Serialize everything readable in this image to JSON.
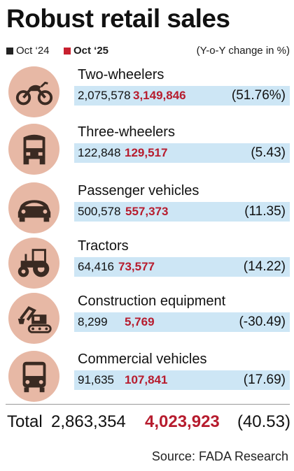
{
  "title": "Robust retail sales",
  "legend": {
    "old": {
      "label": "Oct ‘24",
      "color": "#222222"
    },
    "new": {
      "label": "Oct ‘25",
      "color": "#c8202f"
    },
    "note": "(Y-o-Y change in %)"
  },
  "colors": {
    "bar": "#cde6f5",
    "icon_bg": "#e7b8a5",
    "icon": "#3a2a22",
    "new_value": "#b71c2e"
  },
  "chart_data": {
    "type": "table",
    "title": "Robust retail sales",
    "columns": [
      "Oct ‘24",
      "Oct ‘25",
      "Y-o-Y change in %"
    ],
    "rows": [
      {
        "icon": "motorcycle-icon",
        "name": "Two-wheelers",
        "old": "2,075,578",
        "new": "3,149,846",
        "change": "(51.76%)"
      },
      {
        "icon": "auto-rickshaw-icon",
        "name": "Three-wheelers",
        "old": "122,848",
        "new": "129,517",
        "change": "(5.43)"
      },
      {
        "icon": "car-icon",
        "name": "Passenger vehicles",
        "old": "500,578",
        "new": "557,373",
        "change": "(11.35)"
      },
      {
        "icon": "tractor-icon",
        "name": "Tractors",
        "old": "64,416",
        "new": "73,577",
        "change": "(14.22)"
      },
      {
        "icon": "excavator-icon",
        "name": "Construction equipment",
        "old": "8,299",
        "new": "5,769",
        "change": "(-30.49)"
      },
      {
        "icon": "bus-icon",
        "name": "Commercial vehicles",
        "old": "91,635",
        "new": "107,841",
        "change": "(17.69)"
      }
    ],
    "total": {
      "label": "Total",
      "old": "2,863,354",
      "new": "4,023,923",
      "change": "(40.53)"
    }
  },
  "source": "Source: FADA Research"
}
